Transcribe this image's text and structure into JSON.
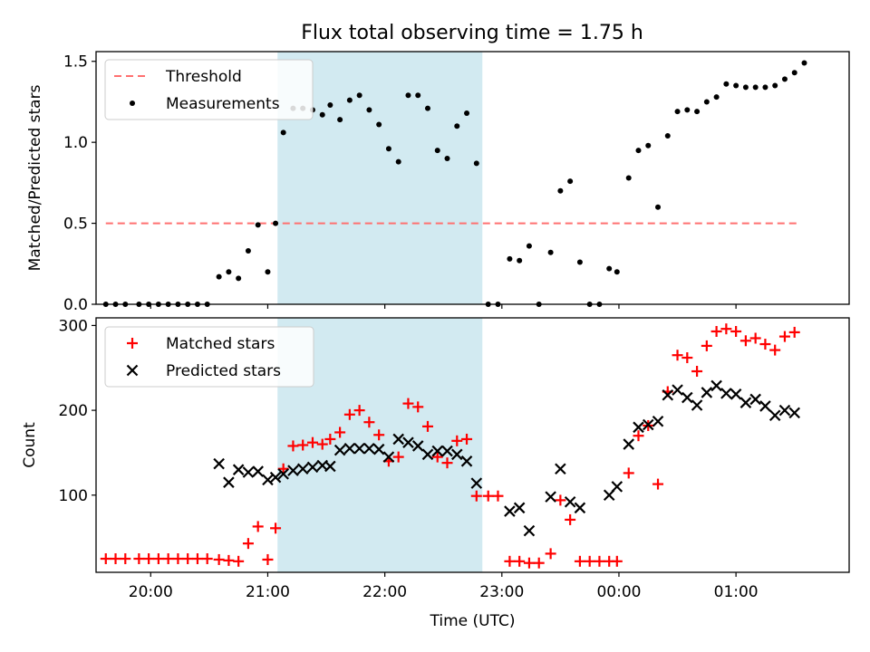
{
  "title": "Flux total observing time = 1.75 h",
  "colors": {
    "threshold": "#ff7070",
    "measurement": "#000000",
    "matched": "#ff0000",
    "predicted": "#000000",
    "shade": "#add8e6"
  },
  "chart_data": [
    {
      "type": "scatter",
      "panel": "top",
      "ylabel": "Matched/Predicted stars",
      "xlabel": "",
      "ylim": [
        0,
        1.56
      ],
      "yticks": [
        0.0,
        0.5,
        1.0,
        1.5
      ],
      "ytick_labels": [
        "0.0",
        "0.5",
        "1.0",
        "1.5"
      ],
      "x_time_range": [
        "19:32",
        "01:58"
      ],
      "xticks": [
        "20:00",
        "21:00",
        "22:00",
        "23:00",
        "00:00",
        "01:00"
      ],
      "shaded_interval": [
        "21:05",
        "22:50"
      ],
      "legend": {
        "position": "upper left",
        "entries": [
          "Threshold",
          "Measurements"
        ]
      },
      "threshold": {
        "name": "Threshold",
        "value": 0.5,
        "x_start": "19:37",
        "x_end": "01:32"
      },
      "series": [
        {
          "name": "Measurements",
          "points": [
            [
              "19:37",
              0.0
            ],
            [
              "19:42",
              0.0
            ],
            [
              "19:47",
              0.0
            ],
            [
              "19:54",
              0.0
            ],
            [
              "19:59",
              0.0
            ],
            [
              "20:04",
              0.0
            ],
            [
              "20:09",
              0.0
            ],
            [
              "20:14",
              0.0
            ],
            [
              "20:19",
              0.0
            ],
            [
              "20:24",
              0.0
            ],
            [
              "20:29",
              0.0
            ],
            [
              "20:35",
              0.17
            ],
            [
              "20:40",
              0.2
            ],
            [
              "20:45",
              0.16
            ],
            [
              "20:50",
              0.33
            ],
            [
              "20:55",
              0.49
            ],
            [
              "21:00",
              0.2
            ],
            [
              "21:04",
              0.5
            ],
            [
              "21:08",
              1.06
            ],
            [
              "21:13",
              1.21
            ],
            [
              "21:18",
              1.21
            ],
            [
              "21:23",
              1.2
            ],
            [
              "21:28",
              1.17
            ],
            [
              "21:32",
              1.23
            ],
            [
              "21:37",
              1.14
            ],
            [
              "21:42",
              1.26
            ],
            [
              "21:47",
              1.29
            ],
            [
              "21:52",
              1.2
            ],
            [
              "21:57",
              1.11
            ],
            [
              "22:02",
              0.96
            ],
            [
              "22:07",
              0.88
            ],
            [
              "22:12",
              1.29
            ],
            [
              "22:17",
              1.29
            ],
            [
              "22:22",
              1.21
            ],
            [
              "22:27",
              0.95
            ],
            [
              "22:32",
              0.9
            ],
            [
              "22:37",
              1.1
            ],
            [
              "22:42",
              1.18
            ],
            [
              "22:47",
              0.87
            ],
            [
              "22:53",
              0.0
            ],
            [
              "22:58",
              0.0
            ],
            [
              "23:04",
              0.28
            ],
            [
              "23:09",
              0.27
            ],
            [
              "23:14",
              0.36
            ],
            [
              "23:19",
              0.0
            ],
            [
              "23:25",
              0.32
            ],
            [
              "23:30",
              0.7
            ],
            [
              "23:35",
              0.76
            ],
            [
              "23:40",
              0.26
            ],
            [
              "23:45",
              0.0
            ],
            [
              "23:50",
              0.0
            ],
            [
              "23:55",
              0.22
            ],
            [
              "23:59",
              0.2
            ],
            [
              "00:05",
              0.78
            ],
            [
              "00:10",
              0.95
            ],
            [
              "00:15",
              0.98
            ],
            [
              "00:20",
              0.6
            ],
            [
              "00:25",
              1.04
            ],
            [
              "00:30",
              1.19
            ],
            [
              "00:35",
              1.2
            ],
            [
              "00:40",
              1.19
            ],
            [
              "00:45",
              1.25
            ],
            [
              "00:50",
              1.28
            ],
            [
              "00:55",
              1.36
            ],
            [
              "01:00",
              1.35
            ],
            [
              "01:05",
              1.34
            ],
            [
              "01:10",
              1.34
            ],
            [
              "01:15",
              1.34
            ],
            [
              "01:20",
              1.35
            ],
            [
              "01:25",
              1.39
            ],
            [
              "01:30",
              1.43
            ],
            [
              "01:35",
              1.49
            ]
          ]
        }
      ]
    },
    {
      "type": "scatter",
      "panel": "bottom",
      "ylabel": "Count",
      "xlabel": "Time (UTC)",
      "ylim": [
        9,
        309
      ],
      "yticks": [
        100,
        200,
        300
      ],
      "ytick_labels": [
        "100",
        "200",
        "300"
      ],
      "x_time_range": [
        "19:32",
        "01:58"
      ],
      "xticks": [
        "20:00",
        "21:00",
        "22:00",
        "23:00",
        "00:00",
        "01:00"
      ],
      "xtick_labels": [
        "20:00",
        "21:00",
        "22:00",
        "23:00",
        "00:00",
        "01:00"
      ],
      "shaded_interval": [
        "21:05",
        "22:50"
      ],
      "legend": {
        "position": "upper left",
        "entries": [
          "Matched stars",
          "Predicted stars"
        ]
      },
      "series": [
        {
          "name": "Matched stars",
          "marker": "plus",
          "points": [
            [
              "19:37",
              25
            ],
            [
              "19:42",
              25
            ],
            [
              "19:47",
              25
            ],
            [
              "19:54",
              25
            ],
            [
              "19:59",
              25
            ],
            [
              "20:04",
              25
            ],
            [
              "20:09",
              25
            ],
            [
              "20:14",
              25
            ],
            [
              "20:19",
              25
            ],
            [
              "20:24",
              25
            ],
            [
              "20:29",
              25
            ],
            [
              "20:35",
              24
            ],
            [
              "20:40",
              23
            ],
            [
              "20:45",
              22
            ],
            [
              "20:50",
              43
            ],
            [
              "20:55",
              63
            ],
            [
              "21:00",
              24
            ],
            [
              "21:04",
              61
            ],
            [
              "21:08",
              131
            ],
            [
              "21:13",
              158
            ],
            [
              "21:18",
              159
            ],
            [
              "21:23",
              162
            ],
            [
              "21:28",
              160
            ],
            [
              "21:32",
              166
            ],
            [
              "21:37",
              174
            ],
            [
              "21:42",
              195
            ],
            [
              "21:47",
              200
            ],
            [
              "21:52",
              186
            ],
            [
              "21:57",
              171
            ],
            [
              "22:02",
              140
            ],
            [
              "22:07",
              145
            ],
            [
              "22:12",
              208
            ],
            [
              "22:17",
              204
            ],
            [
              "22:22",
              181
            ],
            [
              "22:27",
              145
            ],
            [
              "22:32",
              138
            ],
            [
              "22:37",
              164
            ],
            [
              "22:42",
              166
            ],
            [
              "22:47",
              99
            ],
            [
              "22:53",
              99
            ],
            [
              "22:58",
              99
            ],
            [
              "23:04",
              22
            ],
            [
              "23:09",
              22
            ],
            [
              "23:14",
              20
            ],
            [
              "23:19",
              20
            ],
            [
              "23:25",
              31
            ],
            [
              "23:30",
              94
            ],
            [
              "23:35",
              71
            ],
            [
              "23:40",
              22
            ],
            [
              "23:45",
              22
            ],
            [
              "23:50",
              22
            ],
            [
              "23:55",
              22
            ],
            [
              "23:59",
              22
            ],
            [
              "00:05",
              126
            ],
            [
              "00:10",
              170
            ],
            [
              "00:15",
              182
            ],
            [
              "00:20",
              113
            ],
            [
              "00:25",
              222
            ],
            [
              "00:30",
              265
            ],
            [
              "00:35",
              262
            ],
            [
              "00:40",
              246
            ],
            [
              "00:45",
              276
            ],
            [
              "00:50",
              293
            ],
            [
              "00:55",
              296
            ],
            [
              "01:00",
              293
            ],
            [
              "01:05",
              282
            ],
            [
              "01:10",
              285
            ],
            [
              "01:15",
              278
            ],
            [
              "01:20",
              271
            ],
            [
              "01:25",
              287
            ],
            [
              "01:30",
              292
            ]
          ]
        },
        {
          "name": "Predicted stars",
          "marker": "x",
          "points": [
            [
              "20:35",
              137
            ],
            [
              "20:40",
              115
            ],
            [
              "20:45",
              130
            ],
            [
              "20:50",
              127
            ],
            [
              "20:55",
              128
            ],
            [
              "21:00",
              118
            ],
            [
              "21:04",
              121
            ],
            [
              "21:08",
              125
            ],
            [
              "21:13",
              129
            ],
            [
              "21:18",
              131
            ],
            [
              "21:23",
              133
            ],
            [
              "21:28",
              135
            ],
            [
              "21:32",
              134
            ],
            [
              "21:37",
              153
            ],
            [
              "21:42",
              155
            ],
            [
              "21:47",
              155
            ],
            [
              "21:52",
              155
            ],
            [
              "21:57",
              154
            ],
            [
              "22:02",
              145
            ],
            [
              "22:07",
              166
            ],
            [
              "22:12",
              162
            ],
            [
              "22:17",
              158
            ],
            [
              "22:22",
              148
            ],
            [
              "22:27",
              152
            ],
            [
              "22:32",
              152
            ],
            [
              "22:37",
              148
            ],
            [
              "22:42",
              140
            ],
            [
              "22:47",
              114
            ],
            [
              "23:04",
              81
            ],
            [
              "23:09",
              85
            ],
            [
              "23:14",
              58
            ],
            [
              "23:25",
              98
            ],
            [
              "23:30",
              131
            ],
            [
              "23:35",
              92
            ],
            [
              "23:40",
              85
            ],
            [
              "23:55",
              100
            ],
            [
              "23:59",
              110
            ],
            [
              "00:05",
              160
            ],
            [
              "00:10",
              180
            ],
            [
              "00:15",
              183
            ],
            [
              "00:20",
              187
            ],
            [
              "00:25",
              218
            ],
            [
              "00:30",
              224
            ],
            [
              "00:35",
              215
            ],
            [
              "00:40",
              206
            ],
            [
              "00:45",
              221
            ],
            [
              "00:50",
              229
            ],
            [
              "00:55",
              220
            ],
            [
              "01:00",
              219
            ],
            [
              "01:05",
              209
            ],
            [
              "01:10",
              213
            ],
            [
              "01:15",
              205
            ],
            [
              "01:20",
              194
            ],
            [
              "01:25",
              200
            ],
            [
              "01:30",
              197
            ]
          ]
        }
      ]
    }
  ]
}
